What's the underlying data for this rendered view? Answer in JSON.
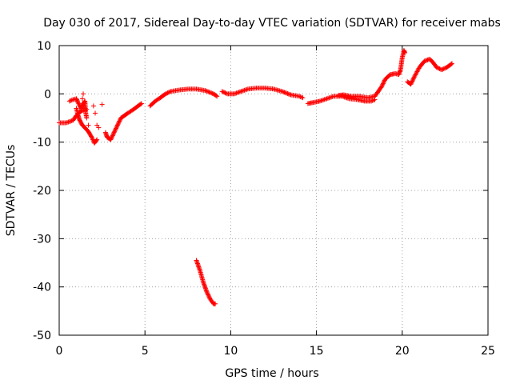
{
  "chart_data": {
    "type": "scatter",
    "title": "Day 030 of 2017, Sidereal Day-to-day VTEC variation (SDTVAR) for receiver mabs",
    "xlabel": "GPS time / hours",
    "ylabel": "SDTVAR / TECUs",
    "xlim": [
      0,
      25
    ],
    "ylim": [
      -50,
      10
    ],
    "xticks": [
      0,
      5,
      10,
      15,
      20,
      25
    ],
    "yticks": [
      -50,
      -40,
      -30,
      -20,
      -10,
      0,
      10
    ],
    "grid": true,
    "marker": "+",
    "color": "#ff0000",
    "series": [
      {
        "name": "SDTVAR",
        "segments": [
          [
            [
              0.0,
              -6.0
            ],
            [
              0.4,
              -6.0
            ],
            [
              0.8,
              -5.5
            ],
            [
              1.0,
              -4.5
            ],
            [
              1.3,
              -3.5
            ],
            [
              1.6,
              -3.2
            ]
          ],
          [
            [
              1.0,
              -3.0
            ],
            [
              1.1,
              -4.5
            ],
            [
              1.2,
              -5.5
            ],
            [
              1.35,
              -6.5
            ],
            [
              1.5,
              -7.0
            ],
            [
              1.7,
              -7.8
            ],
            [
              1.9,
              -9.0
            ],
            [
              2.05,
              -10.2
            ],
            [
              2.2,
              -9.5
            ]
          ],
          [
            [
              0.6,
              -1.5
            ],
            [
              0.8,
              -1.2
            ],
            [
              1.0,
              -1.0
            ],
            [
              1.1,
              -1.8
            ],
            [
              1.2,
              -2.5
            ],
            [
              1.3,
              -3.0
            ],
            [
              1.4,
              -2.0
            ],
            [
              1.5,
              -1.5
            ],
            [
              1.55,
              -4.0
            ],
            [
              1.6,
              -5.0
            ]
          ],
          [
            [
              2.7,
              -8.0
            ],
            [
              2.8,
              -9.0
            ],
            [
              3.0,
              -9.5
            ],
            [
              3.2,
              -8.0
            ],
            [
              3.4,
              -6.5
            ],
            [
              3.6,
              -5.0
            ],
            [
              3.8,
              -4.5
            ],
            [
              4.0,
              -4.0
            ],
            [
              4.3,
              -3.3
            ],
            [
              4.6,
              -2.5
            ],
            [
              4.8,
              -2.0
            ]
          ],
          [
            [
              5.3,
              -2.5
            ],
            [
              5.6,
              -1.5
            ],
            [
              5.9,
              -0.8
            ],
            [
              6.2,
              0.0
            ],
            [
              6.5,
              0.5
            ],
            [
              7.0,
              0.8
            ],
            [
              7.5,
              1.0
            ],
            [
              8.0,
              1.0
            ],
            [
              8.5,
              0.7
            ],
            [
              9.0,
              0.0
            ],
            [
              9.2,
              -0.5
            ]
          ],
          [
            [
              9.5,
              0.5
            ],
            [
              9.8,
              0.0
            ],
            [
              10.2,
              0.0
            ],
            [
              10.6,
              0.5
            ],
            [
              11.0,
              1.0
            ],
            [
              11.5,
              1.2
            ],
            [
              12.0,
              1.2
            ],
            [
              12.5,
              1.0
            ],
            [
              13.0,
              0.5
            ],
            [
              13.5,
              -0.2
            ],
            [
              14.0,
              -0.5
            ],
            [
              14.2,
              -0.8
            ]
          ],
          [
            [
              14.5,
              -2.0
            ],
            [
              14.8,
              -1.8
            ],
            [
              15.2,
              -1.5
            ],
            [
              15.6,
              -1.0
            ],
            [
              16.0,
              -0.5
            ],
            [
              16.5,
              -0.5
            ],
            [
              16.9,
              -1.0
            ],
            [
              17.4,
              -1.2
            ],
            [
              17.8,
              -1.5
            ],
            [
              18.2,
              -1.5
            ],
            [
              18.4,
              -1.2
            ]
          ],
          [
            [
              16.3,
              -0.3
            ],
            [
              16.6,
              -0.2
            ],
            [
              17.0,
              -0.5
            ],
            [
              17.5,
              -0.5
            ],
            [
              18.0,
              -0.8
            ],
            [
              18.4,
              -0.5
            ],
            [
              18.6,
              0.5
            ],
            [
              18.8,
              1.5
            ],
            [
              19.0,
              3.0
            ],
            [
              19.3,
              4.0
            ],
            [
              19.6,
              4.2
            ],
            [
              19.8,
              4.0
            ],
            [
              19.9,
              5.0
            ],
            [
              20.0,
              7.5
            ],
            [
              20.1,
              9.0
            ],
            [
              20.15,
              8.5
            ]
          ],
          [
            [
              20.3,
              2.5
            ],
            [
              20.5,
              2.0
            ],
            [
              20.7,
              3.5
            ],
            [
              21.0,
              5.5
            ],
            [
              21.3,
              6.8
            ],
            [
              21.6,
              7.2
            ],
            [
              21.8,
              6.5
            ],
            [
              22.0,
              5.5
            ],
            [
              22.3,
              5.0
            ],
            [
              22.6,
              5.5
            ],
            [
              22.8,
              6.0
            ],
            [
              22.9,
              6.3
            ]
          ],
          [
            [
              8.0,
              -34.5
            ],
            [
              8.2,
              -36.5
            ],
            [
              8.4,
              -39.0
            ],
            [
              8.6,
              -41.0
            ],
            [
              8.8,
              -42.5
            ],
            [
              9.0,
              -43.5
            ],
            [
              9.1,
              -43.5
            ]
          ]
        ],
        "isolated": [
          [
            1.4,
            0.0
          ],
          [
            1.35,
            -1.0
          ],
          [
            1.2,
            -3.5
          ],
          [
            1.45,
            -2.5
          ],
          [
            2.0,
            -2.5
          ],
          [
            2.1,
            -4.0
          ],
          [
            2.5,
            -2.2
          ],
          [
            2.2,
            -6.5
          ],
          [
            2.3,
            -7.0
          ],
          [
            1.7,
            -6.5
          ]
        ]
      }
    ]
  }
}
